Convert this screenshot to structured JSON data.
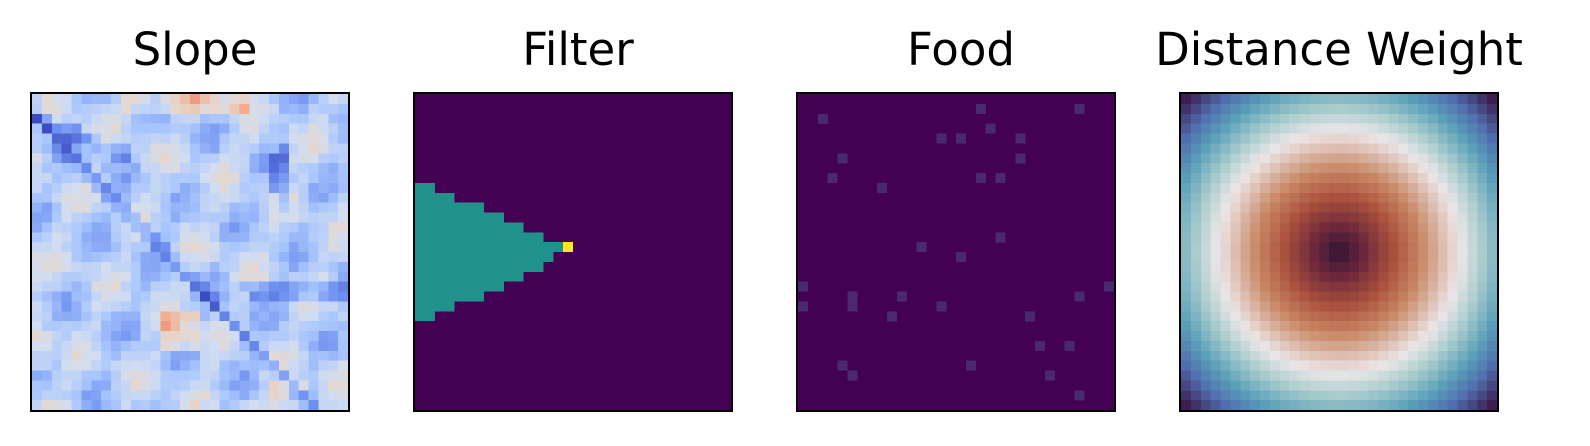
{
  "chart_data": [
    {
      "type": "heatmap",
      "title": "Slope",
      "colormap": "coolwarm",
      "grid": false,
      "description_values": "32x32 slope raster; mostly light blue with dark-blue ridge lines, a diagonal channel from upper-left to lower-right, and a few warm (peach) patches near the top edge and lower-middle",
      "range": [
        0,
        1
      ]
    },
    {
      "type": "heatmap",
      "title": "Filter",
      "colormap": "viridis",
      "grid": false,
      "background_color": "#440154",
      "fill_color": "#21918c",
      "tip_color": "#fde725",
      "shape": "left-pointing cone from left edge toward center, apex at column 16, row 16",
      "range": [
        0,
        2
      ]
    },
    {
      "type": "heatmap",
      "title": "Food",
      "colormap": "viridis",
      "grid": false,
      "background_color": "#440154",
      "dot_color": "#4a2a6e",
      "range": [
        0,
        1
      ]
    },
    {
      "type": "heatmap",
      "title": "Distance Weight",
      "colormap": "twilight_shifted",
      "grid": false,
      "shape": "radially symmetric rings centered on the grid: dark center, orange/red ring, white ring, teal/blue ring, purple corners",
      "range": [
        0,
        1
      ]
    }
  ],
  "colors": {
    "frame": "#000000",
    "title": "#000000"
  }
}
